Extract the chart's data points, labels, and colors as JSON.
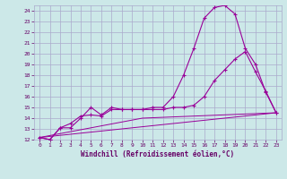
{
  "background_color": "#cce8e8",
  "grid_color": "#aaaacc",
  "line_color": "#990099",
  "xlabel": "Windchill (Refroidissement éolien,°C)",
  "xlabel_color": "#660066",
  "tick_color": "#660066",
  "xlim": [
    -0.5,
    23.5
  ],
  "ylim": [
    12,
    24.5
  ],
  "yticks": [
    12,
    13,
    14,
    15,
    16,
    17,
    18,
    19,
    20,
    21,
    22,
    23,
    24
  ],
  "xticks": [
    0,
    1,
    2,
    3,
    4,
    5,
    6,
    7,
    8,
    9,
    10,
    11,
    12,
    13,
    14,
    15,
    16,
    17,
    18,
    19,
    20,
    21,
    22,
    23
  ],
  "line1_x": [
    0,
    1,
    2,
    3,
    4,
    5,
    6,
    7,
    8,
    9,
    10,
    11,
    12,
    13,
    14,
    15,
    16,
    17,
    18,
    19,
    20,
    21,
    22,
    23
  ],
  "line1_y": [
    12.2,
    12.0,
    13.1,
    13.1,
    14.0,
    15.0,
    14.3,
    15.0,
    14.8,
    14.8,
    14.8,
    15.0,
    15.0,
    16.0,
    18.0,
    20.5,
    23.3,
    24.3,
    24.5,
    23.7,
    20.5,
    19.0,
    16.4,
    14.5
  ],
  "line2_x": [
    0,
    1,
    2,
    3,
    4,
    5,
    6,
    7,
    8,
    9,
    10,
    11,
    12,
    13,
    14,
    15,
    16,
    17,
    18,
    19,
    20,
    21,
    22,
    23
  ],
  "line2_y": [
    12.2,
    12.0,
    13.1,
    13.5,
    14.2,
    14.3,
    14.2,
    14.8,
    14.8,
    14.8,
    14.8,
    14.8,
    14.8,
    15.0,
    15.0,
    15.2,
    16.0,
    17.5,
    18.5,
    19.5,
    20.2,
    18.3,
    16.5,
    14.5
  ],
  "line3_x": [
    0,
    10,
    23
  ],
  "line3_y": [
    12.2,
    14.0,
    14.5
  ],
  "line4_x": [
    0,
    23
  ],
  "line4_y": [
    12.2,
    14.5
  ]
}
